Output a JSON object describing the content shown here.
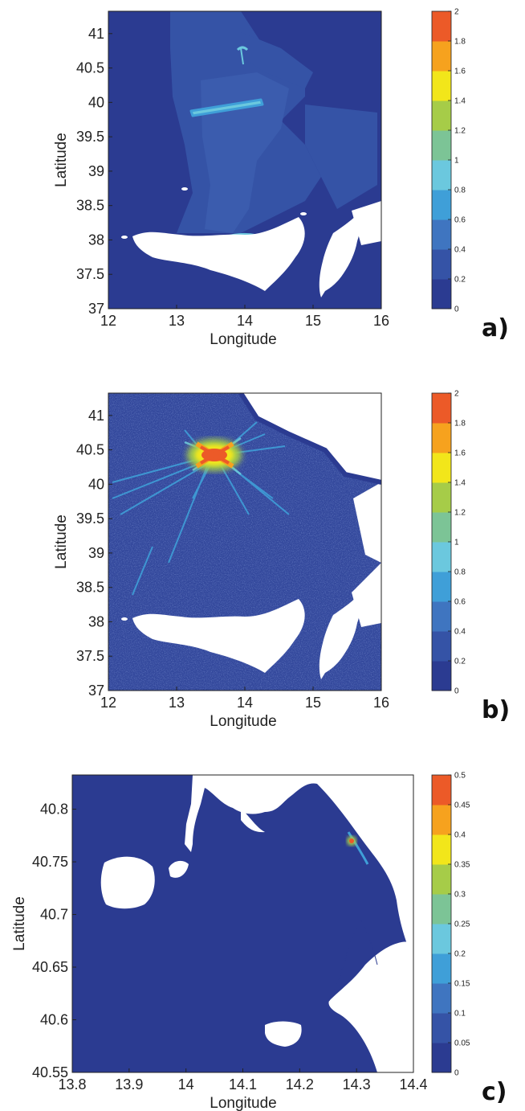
{
  "palette": [
    "#2b3b91",
    "#3553a6",
    "#3f75c0",
    "#3f9fd8",
    "#6bc8de",
    "#7cc496",
    "#a6cc48",
    "#f2e61a",
    "#f6a21e",
    "#ec5a28"
  ],
  "land_color": "#ffffff",
  "panels": [
    {
      "label": "a)",
      "xlabel": "Longitude",
      "ylabel": "Latitude",
      "xticks": [
        "12",
        "13",
        "14",
        "15",
        "16"
      ],
      "yticks": [
        "37",
        "37.5",
        "38",
        "38.5",
        "39",
        "39.5",
        "40",
        "40.5",
        "41"
      ],
      "colorbar_ticks": [
        "0",
        "0.2",
        "0.4",
        "0.6",
        "0.8",
        "1",
        "1.2",
        "1.4",
        "1.6",
        "1.8",
        "2"
      ]
    },
    {
      "label": "b)",
      "xlabel": "Longitude",
      "ylabel": "Latitude",
      "xticks": [
        "12",
        "13",
        "14",
        "15",
        "16"
      ],
      "yticks": [
        "37",
        "37.5",
        "38",
        "38.5",
        "39",
        "39.5",
        "40",
        "40.5",
        "41"
      ],
      "colorbar_ticks": [
        "0",
        "0.2",
        "0.4",
        "0.6",
        "0.8",
        "1",
        "1.2",
        "1.4",
        "1.6",
        "1.8",
        "2"
      ]
    },
    {
      "label": "c)",
      "xlabel": "Longitude",
      "ylabel": "Latitude",
      "xticks": [
        "13.8",
        "13.9",
        "14",
        "14.1",
        "14.2",
        "14.3",
        "14.4"
      ],
      "yticks": [
        "40.55",
        "40.6",
        "40.65",
        "40.7",
        "40.75",
        "40.8"
      ],
      "colorbar_ticks": [
        "0",
        "0.05",
        "0.1",
        "0.15",
        "0.2",
        "0.25",
        "0.3",
        "0.35",
        "0.4",
        "0.45",
        "0.5"
      ]
    }
  ]
}
